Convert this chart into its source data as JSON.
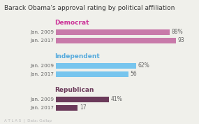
{
  "title": "Barack Obama's approval rating by political affiliation",
  "groups": [
    {
      "label": "Democrat",
      "label_color": "#cc3399",
      "bar_color": "#c87aaa",
      "rows": [
        {
          "year": "Jan. 2009",
          "value": 88,
          "show_pct": true
        },
        {
          "year": "Jan. 2017",
          "value": 93,
          "show_pct": false
        }
      ]
    },
    {
      "label": "Independent",
      "label_color": "#55aadd",
      "bar_color": "#77c5ee",
      "rows": [
        {
          "year": "Jan. 2009",
          "value": 62,
          "show_pct": true
        },
        {
          "year": "Jan. 2017",
          "value": 56,
          "show_pct": false
        }
      ]
    },
    {
      "label": "Republican",
      "label_color": "#6b3a5a",
      "bar_color": "#6b3a5a",
      "rows": [
        {
          "year": "Jan. 2009",
          "value": 41,
          "show_pct": true
        },
        {
          "year": "Jan. 2017",
          "value": 17,
          "show_pct": false
        }
      ]
    }
  ],
  "xlim": [
    0,
    100
  ],
  "background_color": "#f0f0eb",
  "title_fontsize": 6.5,
  "label_fontsize": 6.5,
  "tick_fontsize": 5.2,
  "value_fontsize": 5.5,
  "footer": "A T L A S  |  Data: Gallup"
}
